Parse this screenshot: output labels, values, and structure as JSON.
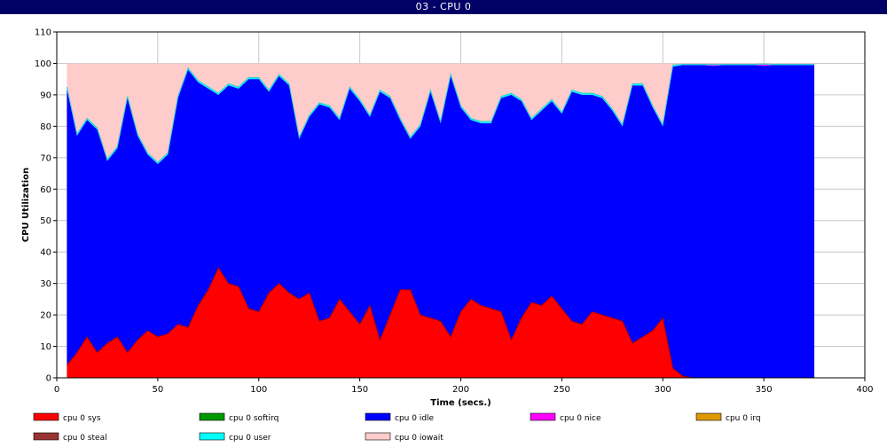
{
  "window": {
    "title": "03 - CPU 0"
  },
  "chart_data": {
    "type": "area",
    "stacked": true,
    "xlabel": "Time (secs.)",
    "ylabel": "CPU Utilization",
    "xlim": [
      0,
      400
    ],
    "ylim": [
      0,
      110
    ],
    "xticks": [
      0,
      50,
      100,
      150,
      200,
      250,
      300,
      350,
      400
    ],
    "yticks": [
      0,
      10,
      20,
      30,
      40,
      50,
      60,
      70,
      80,
      90,
      100,
      110
    ],
    "grid": true,
    "legend_position": "bottom",
    "x": [
      5,
      10,
      15,
      20,
      25,
      30,
      35,
      40,
      45,
      50,
      55,
      60,
      65,
      70,
      75,
      80,
      85,
      90,
      95,
      100,
      105,
      110,
      115,
      120,
      125,
      130,
      135,
      140,
      145,
      150,
      155,
      160,
      165,
      170,
      175,
      180,
      185,
      190,
      195,
      200,
      205,
      210,
      215,
      220,
      225,
      230,
      235,
      240,
      245,
      250,
      255,
      260,
      265,
      270,
      275,
      280,
      285,
      290,
      295,
      300,
      305,
      310,
      315,
      320,
      325,
      330,
      335,
      340,
      345,
      350,
      355,
      360,
      365,
      370,
      375
    ],
    "series": [
      {
        "name": "cpu 0 sys",
        "color": "#ff0000",
        "values": [
          4,
          8,
          13,
          8,
          11,
          13,
          8,
          12,
          15,
          13,
          14,
          17,
          16,
          23,
          28,
          35,
          30,
          29,
          22,
          21,
          27,
          30,
          27,
          25,
          27,
          18,
          19,
          25,
          21,
          17,
          23,
          12,
          20,
          28,
          28,
          20,
          19,
          18,
          13,
          21,
          25,
          23,
          22,
          21,
          12,
          19,
          24,
          23,
          26,
          22,
          18,
          17,
          21,
          20,
          19,
          18,
          11,
          13,
          15,
          19,
          3,
          0.5,
          0,
          0,
          0,
          0,
          0,
          0,
          0,
          0,
          0,
          0,
          0,
          0,
          0
        ]
      },
      {
        "name": "cpu 0 softirq",
        "color": "#009900",
        "values": [
          0,
          0,
          0,
          0,
          0,
          0,
          0,
          0,
          0,
          0,
          0,
          0,
          0,
          0,
          0,
          0,
          0,
          0,
          0,
          0,
          0,
          0,
          0,
          0,
          0,
          0,
          0,
          0,
          0,
          0,
          0,
          0,
          0,
          0,
          0,
          0,
          0,
          0,
          0,
          0,
          0,
          0,
          0,
          0,
          0,
          0,
          0,
          0,
          0,
          0,
          0,
          0,
          0,
          0,
          0,
          0,
          0,
          0,
          0,
          0,
          0,
          0,
          0,
          0,
          0,
          0,
          0,
          0,
          0,
          0,
          0,
          0,
          0,
          0,
          0
        ]
      },
      {
        "name": "cpu 0 idle",
        "color": "#0000ff",
        "values": [
          88,
          69,
          69,
          71,
          58,
          60,
          81,
          65,
          56,
          55,
          57,
          72,
          82,
          71,
          64,
          55,
          63,
          63,
          73,
          74,
          64,
          66,
          66,
          51,
          56,
          69,
          67,
          57,
          71,
          71,
          60,
          79,
          69,
          54,
          48,
          60,
          72,
          63,
          83,
          65,
          57,
          58,
          59,
          68,
          78,
          69,
          58,
          62,
          62,
          62,
          73,
          73,
          69,
          69,
          66,
          62,
          82,
          80,
          71,
          61,
          96,
          99,
          99.5,
          99.5,
          99.2,
          99.5,
          99.5,
          99.5,
          99.5,
          99.2,
          99.5,
          99.5,
          99.5,
          99.5,
          99.5
        ]
      },
      {
        "name": "cpu 0 nice",
        "color": "#ff00ff",
        "values": [
          0,
          0,
          0,
          0,
          0,
          0,
          0,
          0,
          0,
          0,
          0,
          0,
          0,
          0,
          0,
          0,
          0,
          0,
          0,
          0,
          0,
          0,
          0,
          0,
          0,
          0,
          0,
          0,
          0,
          0,
          0,
          0,
          0,
          0,
          0,
          0,
          0,
          0,
          0,
          0,
          0,
          0,
          0,
          0,
          0,
          0,
          0,
          0,
          0,
          0,
          0,
          0,
          0,
          0,
          0,
          0,
          0,
          0,
          0,
          0,
          0,
          0,
          0,
          0,
          0.3,
          0,
          0,
          0,
          0,
          0.4,
          0,
          0,
          0,
          0,
          0
        ]
      },
      {
        "name": "cpu 0 irq",
        "color": "#dd9900",
        "values": [
          0,
          0,
          0,
          0,
          0,
          0,
          0,
          0,
          0,
          0,
          0,
          0,
          0,
          0,
          0,
          0,
          0,
          0,
          0,
          0,
          0,
          0,
          0,
          0,
          0,
          0,
          0,
          0,
          0,
          0,
          0,
          0,
          0,
          0,
          0,
          0,
          0,
          0,
          0,
          0,
          0,
          0,
          0,
          0,
          0,
          0,
          0,
          0,
          0,
          0,
          0,
          0,
          0,
          0,
          0,
          0,
          0,
          0,
          0,
          0,
          0,
          0,
          0,
          0,
          0,
          0,
          0,
          0,
          0,
          0,
          0,
          0,
          0,
          0,
          0
        ]
      },
      {
        "name": "cpu 0 steal",
        "color": "#993333",
        "values": [
          0,
          0,
          0,
          0,
          0,
          0,
          0,
          0,
          0,
          0,
          0,
          0,
          0,
          0,
          0,
          0,
          0,
          0,
          0,
          0,
          0,
          0,
          0,
          0,
          0,
          0,
          0,
          0,
          0,
          0,
          0,
          0,
          0,
          0,
          0,
          0,
          0,
          0,
          0,
          0,
          0,
          0,
          0,
          0,
          0,
          0,
          0,
          0,
          0,
          0,
          0,
          0,
          0,
          0,
          0,
          0,
          0,
          0,
          0,
          0,
          0,
          0,
          0,
          0,
          0,
          0,
          0,
          0,
          0,
          0,
          0,
          0,
          0,
          0,
          0
        ]
      },
      {
        "name": "cpu 0 user",
        "color": "#00ffff",
        "values": [
          0.5,
          0.5,
          0.5,
          0.5,
          0.5,
          0.5,
          0.5,
          0.5,
          0.5,
          0.5,
          0.5,
          0.5,
          0.5,
          0.5,
          0.5,
          0.5,
          0.5,
          0.5,
          0.5,
          0.5,
          0.5,
          0.5,
          0.5,
          0.5,
          0.5,
          0.5,
          0.5,
          0.5,
          0.5,
          0.5,
          0.5,
          0.5,
          0.5,
          0.5,
          0.5,
          0.5,
          0.5,
          0.5,
          0.5,
          0.5,
          0.5,
          0.5,
          0.5,
          0.5,
          0.5,
          0.5,
          0.5,
          0.5,
          0.5,
          0.5,
          0.5,
          0.5,
          0.5,
          0.5,
          0.5,
          0.5,
          0.5,
          0.5,
          0.5,
          0.5,
          0.5,
          0.2,
          0.2,
          0.2,
          0.2,
          0.2,
          0.2,
          0.2,
          0.2,
          0.2,
          0.2,
          0.2,
          0.2,
          0.2,
          0.2
        ]
      },
      {
        "name": "cpu 0 iowait",
        "color": "#ffcccc",
        "values": [
          7.5,
          22.5,
          17.5,
          20.5,
          30.5,
          26.5,
          10.5,
          22.5,
          28.5,
          31.5,
          28.5,
          10.5,
          1.5,
          5.5,
          7.5,
          9.5,
          6.5,
          7.5,
          4.5,
          4.5,
          8.5,
          3.5,
          6.5,
          23.5,
          16.5,
          12.5,
          13.5,
          17.5,
          7.5,
          11.5,
          16.5,
          8.5,
          10.5,
          17.5,
          23.5,
          19.5,
          8.5,
          18.5,
          3.5,
          13.5,
          17.5,
          18.5,
          18.5,
          10.5,
          9.5,
          11.5,
          17.5,
          14.5,
          11.5,
          15.5,
          8.5,
          9.5,
          9.5,
          10.5,
          14.5,
          19.5,
          6.5,
          6.5,
          13.5,
          19.5,
          0.5,
          0.3,
          0.3,
          0.3,
          0.3,
          0.3,
          0.3,
          0.3,
          0.3,
          0.2,
          0.3,
          0.3,
          0.3,
          0.3,
          0.3
        ]
      }
    ]
  }
}
